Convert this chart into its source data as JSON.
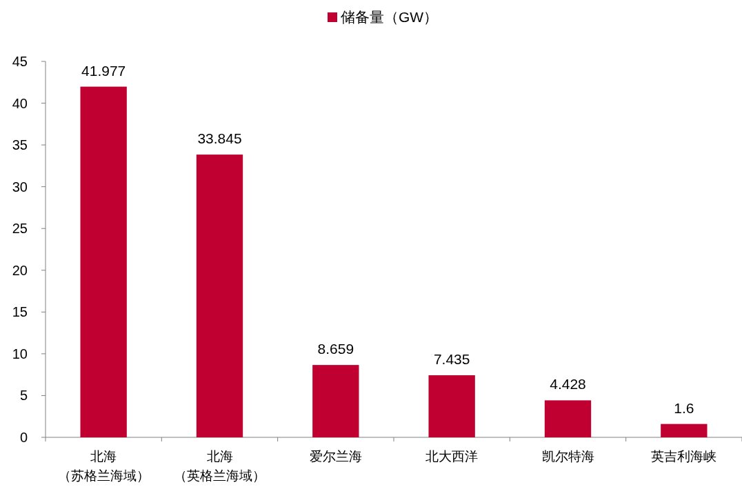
{
  "chart_data": {
    "type": "bar",
    "categories": [
      "北海（苏格兰海域）",
      "北海（英格兰海域）",
      "爱尔兰海",
      "北大西洋",
      "凯尔特海",
      "英吉利海峡"
    ],
    "series": [
      {
        "name": "储备量（GW）",
        "color": "#c00030",
        "values": [
          41.977,
          33.845,
          8.659,
          7.435,
          4.428,
          1.6
        ]
      }
    ],
    "data_labels": true,
    "ylim": [
      0,
      45
    ],
    "yticks": [
      0,
      5,
      10,
      15,
      20,
      25,
      30,
      35,
      40,
      45
    ],
    "legend": "top",
    "grid": false
  }
}
